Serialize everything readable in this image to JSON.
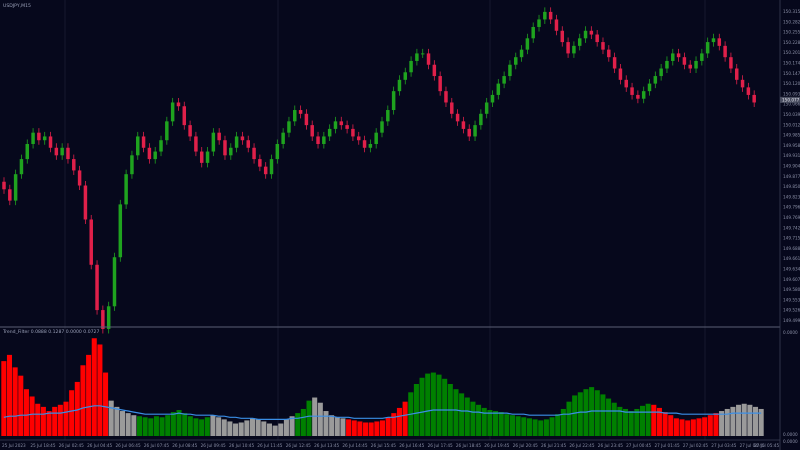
{
  "main_window": {
    "symbol_label": "USDJPY,M15"
  },
  "indicator_window": {
    "label": "Trend_Filter 0.0888 0.1287 0.0000 0.0727",
    "scale_top": "0.0000",
    "scale_zero": "0.0000",
    "scale_bottom": "0.0000"
  },
  "price_axis": {
    "labels": [
      "150.315",
      "150.282",
      "150.255",
      "150.228",
      "150.201",
      "150.174",
      "150.147",
      "150.120",
      "150.093",
      "150.066",
      "150.039",
      "150.012",
      "149.985",
      "149.958",
      "149.931",
      "149.904",
      "149.877",
      "149.850",
      "149.823",
      "149.796",
      "149.769",
      "149.742",
      "149.715",
      "149.688",
      "149.661",
      "149.634",
      "149.607",
      "149.580",
      "149.553",
      "149.526",
      "149.499"
    ],
    "current_price": "150.077"
  },
  "time_axis": {
    "labels": [
      "25 Jul 2023",
      "25 Jul 18:45",
      "26 Jul 02:45",
      "26 Jul 04:45",
      "26 Jul 06:45",
      "26 Jul 07:45",
      "26 Jul 08:45",
      "26 Jul 09:45",
      "26 Jul 10:45",
      "26 Jul 11:45",
      "26 Jul 12:45",
      "26 Jul 13:45",
      "26 Jul 14:45",
      "26 Jul 15:45",
      "26 Jul 16:45",
      "26 Jul 17:45",
      "26 Jul 18:45",
      "26 Jul 19:45",
      "26 Jul 20:45",
      "26 Jul 21:45",
      "26 Jul 22:45",
      "26 Jul 23:45",
      "27 Jul 00:45",
      "27 Jul 01:45",
      "27 Jul 02:45",
      "27 Jul 03:45",
      "27 Jul 04:45",
      "27 Jul 05:45"
    ]
  },
  "colors": {
    "background": "#06081c",
    "bull": "#1fa31f",
    "bear": "#e0204a",
    "hist_red": "#ff0000",
    "hist_green": "#008000",
    "hist_gray": "#9a9a9a",
    "ma_line": "#3a8ee6",
    "grid": "#1a1e34",
    "separator": "#5a5e74"
  },
  "chart_data": [
    {
      "type": "candlestick",
      "title": "USDJPY,M15",
      "closes": [
        149.84,
        149.81,
        149.88,
        149.92,
        149.96,
        149.99,
        149.97,
        149.98,
        149.95,
        149.93,
        149.95,
        149.92,
        149.89,
        149.85,
        149.76,
        149.64,
        149.52,
        149.47,
        149.53,
        149.66,
        149.8,
        149.88,
        149.93,
        149.98,
        149.95,
        149.92,
        149.94,
        149.97,
        150.02,
        150.07,
        150.06,
        150.01,
        149.98,
        149.94,
        149.91,
        149.94,
        149.99,
        149.97,
        149.93,
        149.95,
        149.98,
        149.97,
        149.95,
        149.92,
        149.9,
        149.88,
        149.92,
        149.96,
        149.99,
        150.02,
        150.05,
        150.04,
        150.01,
        149.98,
        149.96,
        149.98,
        150.0,
        150.02,
        150.01,
        150.0,
        149.98,
        149.97,
        149.95,
        149.96,
        149.99,
        150.02,
        150.05,
        150.1,
        150.13,
        150.15,
        150.18,
        150.2,
        150.2,
        150.17,
        150.14,
        150.1,
        150.07,
        150.04,
        150.02,
        150.0,
        149.98,
        150.01,
        150.04,
        150.07,
        150.09,
        150.12,
        150.14,
        150.17,
        150.19,
        150.21,
        150.24,
        150.27,
        150.29,
        150.31,
        150.29,
        150.26,
        150.23,
        150.2,
        150.22,
        150.24,
        150.26,
        150.25,
        150.23,
        150.21,
        150.19,
        150.16,
        150.13,
        150.11,
        150.09,
        150.08,
        150.1,
        150.12,
        150.14,
        150.16,
        150.18,
        150.2,
        150.19,
        150.17,
        150.16,
        150.18,
        150.2,
        150.23,
        150.24,
        150.22,
        150.19,
        150.16,
        150.13,
        150.11,
        150.09,
        150.07
      ],
      "current_price": 150.077
    },
    {
      "type": "bar",
      "title": "Trend_Filter 0.0888 0.1287 0.0000 0.0727",
      "values": [
        0.72,
        0.78,
        0.66,
        0.58,
        0.45,
        0.38,
        0.31,
        0.28,
        0.24,
        0.28,
        0.3,
        0.33,
        0.44,
        0.52,
        0.68,
        0.78,
        0.94,
        0.88,
        0.61,
        0.34,
        0.28,
        0.24,
        0.22,
        0.2,
        0.19,
        0.18,
        0.17,
        0.19,
        0.18,
        0.2,
        0.23,
        0.25,
        0.22,
        0.19,
        0.17,
        0.16,
        0.18,
        0.2,
        0.18,
        0.16,
        0.14,
        0.12,
        0.13,
        0.15,
        0.17,
        0.16,
        0.14,
        0.12,
        0.1,
        0.12,
        0.16,
        0.19,
        0.22,
        0.26,
        0.34,
        0.37,
        0.32,
        0.24,
        0.2,
        0.18,
        0.17,
        0.16,
        0.15,
        0.14,
        0.13,
        0.13,
        0.14,
        0.15,
        0.18,
        0.22,
        0.27,
        0.33,
        0.42,
        0.5,
        0.56,
        0.6,
        0.61,
        0.59,
        0.55,
        0.5,
        0.45,
        0.41,
        0.37,
        0.33,
        0.3,
        0.27,
        0.25,
        0.24,
        0.23,
        0.21,
        0.2,
        0.19,
        0.18,
        0.17,
        0.16,
        0.15,
        0.16,
        0.18,
        0.21,
        0.26,
        0.33,
        0.39,
        0.42,
        0.45,
        0.47,
        0.44,
        0.4,
        0.36,
        0.32,
        0.28,
        0.26,
        0.24,
        0.26,
        0.29,
        0.31,
        0.3,
        0.27,
        0.23,
        0.2,
        0.17,
        0.16,
        0.15,
        0.16,
        0.17,
        0.18,
        0.2,
        0.22,
        0.24,
        0.26,
        0.28,
        0.3,
        0.31,
        0.3,
        0.28,
        0.26
      ],
      "colors": [
        "red",
        "red",
        "red",
        "red",
        "red",
        "red",
        "red",
        "red",
        "red",
        "red",
        "red",
        "red",
        "red",
        "red",
        "red",
        "red",
        "red",
        "red",
        "red",
        "gray",
        "gray",
        "gray",
        "gray",
        "gray",
        "green",
        "green",
        "green",
        "green",
        "green",
        "green",
        "green",
        "green",
        "green",
        "green",
        "green",
        "green",
        "green",
        "gray",
        "gray",
        "gray",
        "gray",
        "gray",
        "gray",
        "gray",
        "gray",
        "gray",
        "gray",
        "gray",
        "gray",
        "gray",
        "gray",
        "gray",
        "green",
        "green",
        "green",
        "gray",
        "gray",
        "gray",
        "gray",
        "gray",
        "gray",
        "red",
        "red",
        "red",
        "red",
        "red",
        "red",
        "red",
        "red",
        "red",
        "red",
        "red",
        "green",
        "green",
        "green",
        "green",
        "green",
        "green",
        "green",
        "green",
        "green",
        "green",
        "green",
        "green",
        "green",
        "green",
        "green",
        "green",
        "green",
        "green",
        "green",
        "green",
        "green",
        "green",
        "green",
        "green",
        "green",
        "green",
        "green",
        "green",
        "green",
        "green",
        "green",
        "green",
        "green",
        "green",
        "green",
        "green",
        "green",
        "green",
        "green",
        "green",
        "green",
        "green",
        "green",
        "red",
        "red",
        "red",
        "red",
        "red",
        "red",
        "red",
        "red",
        "red",
        "red",
        "red",
        "red",
        "gray",
        "gray",
        "gray",
        "gray",
        "gray",
        "gray",
        "gray",
        "gray",
        "gray",
        "red",
        "red",
        "red"
      ],
      "moving_average": [
        0.18,
        0.19,
        0.19,
        0.2,
        0.2,
        0.21,
        0.21,
        0.21,
        0.22,
        0.22,
        0.22,
        0.23,
        0.24,
        0.25,
        0.27,
        0.28,
        0.29,
        0.29,
        0.28,
        0.27,
        0.26,
        0.25,
        0.24,
        0.23,
        0.22,
        0.21,
        0.21,
        0.21,
        0.21,
        0.21,
        0.21,
        0.22,
        0.21,
        0.21,
        0.2,
        0.2,
        0.2,
        0.2,
        0.19,
        0.19,
        0.18,
        0.18,
        0.17,
        0.17,
        0.17,
        0.16,
        0.16,
        0.16,
        0.16,
        0.16,
        0.16,
        0.17,
        0.17,
        0.18,
        0.19,
        0.19,
        0.19,
        0.19,
        0.19,
        0.18,
        0.18,
        0.18,
        0.17,
        0.17,
        0.17,
        0.17,
        0.17,
        0.17,
        0.18,
        0.18,
        0.19,
        0.2,
        0.21,
        0.22,
        0.23,
        0.24,
        0.25,
        0.25,
        0.25,
        0.25,
        0.25,
        0.24,
        0.24,
        0.23,
        0.23,
        0.22,
        0.22,
        0.22,
        0.22,
        0.22,
        0.21,
        0.21,
        0.21,
        0.2,
        0.2,
        0.2,
        0.2,
        0.2,
        0.2,
        0.21,
        0.21,
        0.22,
        0.23,
        0.23,
        0.24,
        0.24,
        0.24,
        0.24,
        0.24,
        0.24,
        0.23,
        0.23,
        0.23,
        0.23,
        0.23,
        0.23,
        0.23,
        0.22,
        0.22,
        0.22,
        0.21,
        0.21,
        0.21,
        0.21,
        0.21,
        0.21,
        0.21,
        0.21,
        0.21,
        0.22,
        0.22,
        0.22,
        0.22,
        0.22,
        0.22
      ]
    }
  ]
}
